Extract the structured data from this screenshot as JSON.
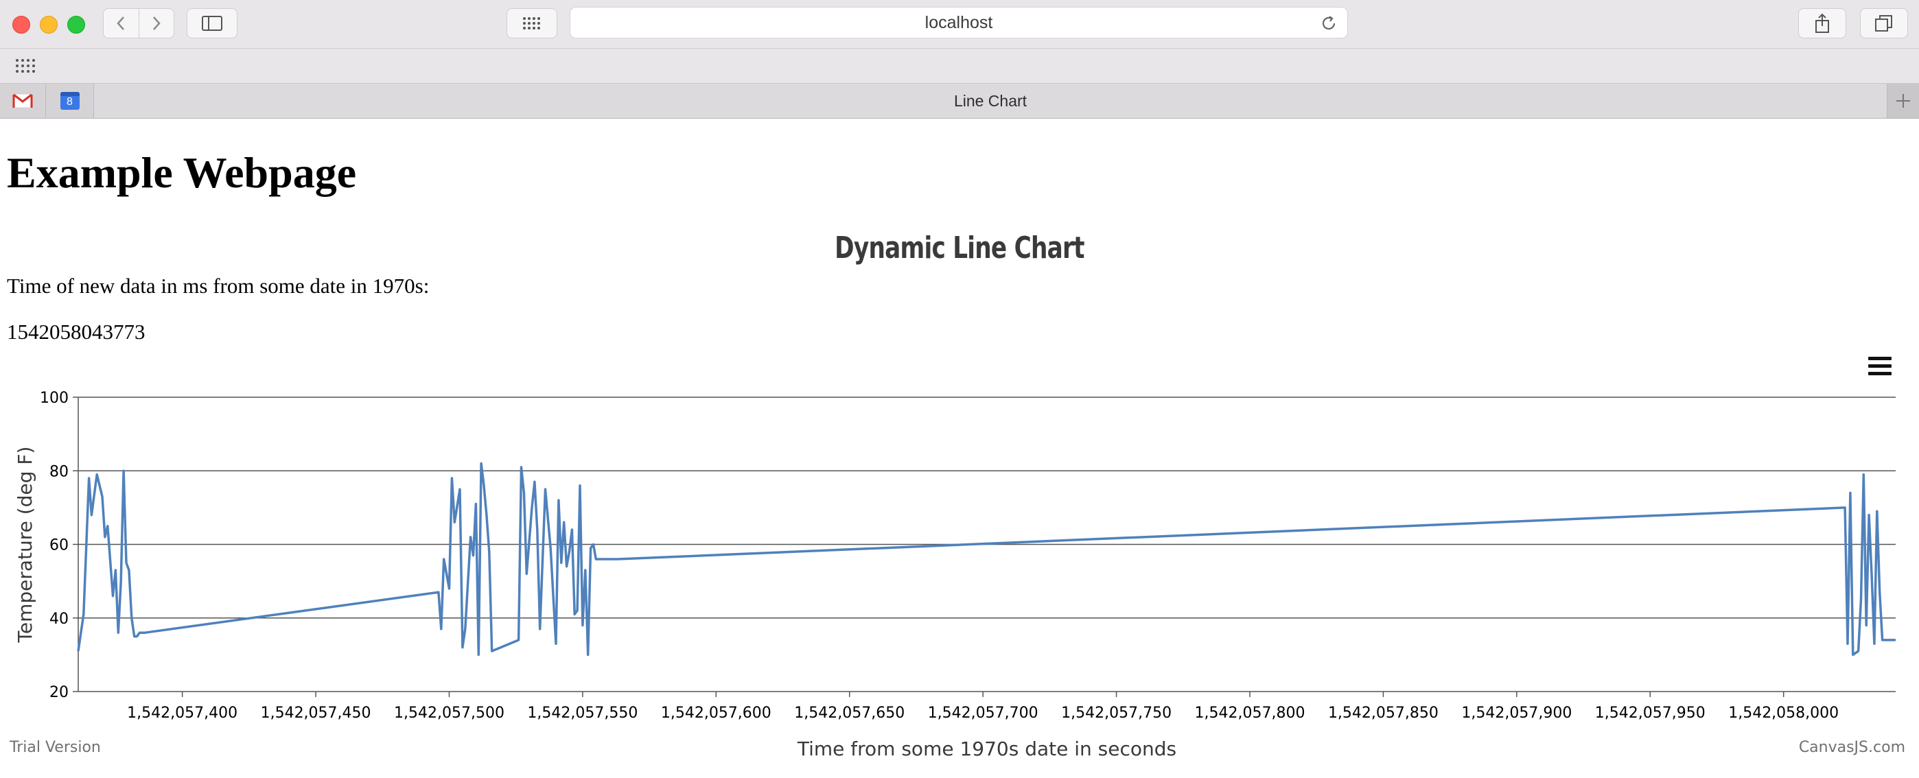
{
  "browser": {
    "url": "localhost",
    "tab_title": "Line Chart",
    "pinned_tabs": [
      {
        "icon": "gmail-icon"
      },
      {
        "icon": "calendar-icon",
        "badge": "8"
      }
    ]
  },
  "page": {
    "heading": "Example Webpage",
    "label": "Time of new data in ms from some date in 1970s:",
    "timestamp": "1542058043773"
  },
  "chart_data": {
    "type": "line",
    "title": "Dynamic Line Chart",
    "xlabel": "Time from some 1970s date in seconds",
    "ylabel": "Temperature (deg F)",
    "xlim": [
      1542057361,
      1542058042
    ],
    "ylim": [
      20,
      100
    ],
    "y_ticks": [
      20,
      40,
      60,
      80,
      100
    ],
    "x_ticks": [
      1542057400,
      1542057450,
      1542057500,
      1542057550,
      1542057600,
      1542057650,
      1542057700,
      1542057750,
      1542057800,
      1542057850,
      1542057900,
      1542057950,
      1542058000
    ],
    "x_tick_labels": [
      "1,542,057,400",
      "1,542,057,450",
      "1,542,057,500",
      "1,542,057,550",
      "1,542,057,600",
      "1,542,057,650",
      "1,542,057,700",
      "1,542,057,750",
      "1,542,057,800",
      "1,542,057,850",
      "1,542,057,900",
      "1,542,057,950",
      "1,542,058,000"
    ],
    "grid": true,
    "line_color": "#4f81bc",
    "series": [
      {
        "x": [
          1542057361,
          1542057363,
          1542057365,
          1542057366,
          1542057368,
          1542057370,
          1542057371,
          1542057372,
          1542057374,
          1542057375,
          1542057376,
          1542057377,
          1542057378,
          1542057379,
          1542057380,
          1542057381,
          1542057382,
          1542057383,
          1542057384,
          1542057386,
          1542057496,
          1542057497,
          1542057498,
          1542057500,
          1542057501,
          1542057502,
          1542057504,
          1542057505,
          1542057506,
          1542057508,
          1542057509,
          1542057510,
          1542057511,
          1542057512,
          1542057513,
          1542057514,
          1542057515,
          1542057516,
          1542057526,
          1542057527,
          1542057528,
          1542057529,
          1542057531,
          1542057532,
          1542057533,
          1542057534,
          1542057536,
          1542057538,
          1542057540,
          1542057541,
          1542057542,
          1542057543,
          1542057544,
          1542057545,
          1542057546,
          1542057547,
          1542057548,
          1542057549,
          1542057550,
          1542057551,
          1542057552,
          1542057553,
          1542057554,
          1542057555,
          1542057556,
          1542057557,
          1542057558,
          1542057559,
          1542057560,
          1542057561,
          1542057562,
          1542057563,
          1542058023,
          1542058024,
          1542058025,
          1542058026,
          1542058028,
          1542058029,
          1542058030,
          1542058031,
          1542058032,
          1542058033,
          1542058034,
          1542058035,
          1542058036,
          1542058037,
          1542058038,
          1542058039,
          1542058040,
          1542058041,
          1542058042
        ],
        "y": [
          31,
          41,
          78,
          68,
          79,
          73,
          62,
          65,
          46,
          53,
          36,
          50,
          80,
          55,
          53,
          40,
          35,
          35,
          36,
          36,
          47,
          37,
          56,
          48,
          78,
          66,
          75,
          32,
          37,
          62,
          57,
          71,
          30,
          82,
          76,
          68,
          58,
          31,
          34,
          81,
          74,
          52,
          70,
          77,
          64,
          37,
          75,
          59,
          33,
          72,
          55,
          66,
          54,
          58,
          64,
          41,
          42,
          76,
          38,
          53,
          30,
          59,
          60,
          56,
          56,
          56,
          56,
          56,
          56,
          56,
          56,
          56,
          70,
          33,
          74,
          30,
          31,
          45,
          79,
          38,
          68,
          52,
          33,
          69,
          47,
          34,
          34,
          34,
          34,
          34,
          34
        ]
      }
    ]
  },
  "footer": {
    "trial": "Trial Version",
    "credit": "CanvasJS.com"
  }
}
